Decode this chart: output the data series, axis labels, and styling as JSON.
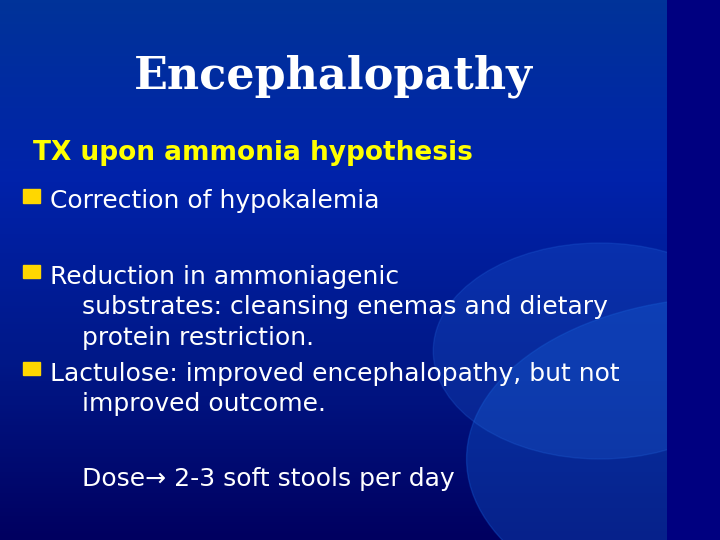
{
  "title": "Encephalopathy",
  "title_color": "#FFFFFF",
  "title_fontsize": 32,
  "title_fontstyle": "bold",
  "bg_color_top": "#000080",
  "bg_color_bottom": "#0033CC",
  "heading_text": "TX upon ammonia hypothesis",
  "heading_color": "#FFFF00",
  "heading_fontsize": 19,
  "bullet_color": "#FFD700",
  "text_color": "#FFFFFF",
  "bullet_fontsize": 18,
  "bullets": [
    "Correction of hypokalemia",
    "Reduction in ammoniagenic\n    substrates: cleansing enemas and dietary\n    protein restriction.",
    "Lactulose: improved encephalopathy, but not\n    improved outcome."
  ],
  "footer_text": "    Dose→ 2-3 soft stools per day",
  "footer_fontsize": 18
}
